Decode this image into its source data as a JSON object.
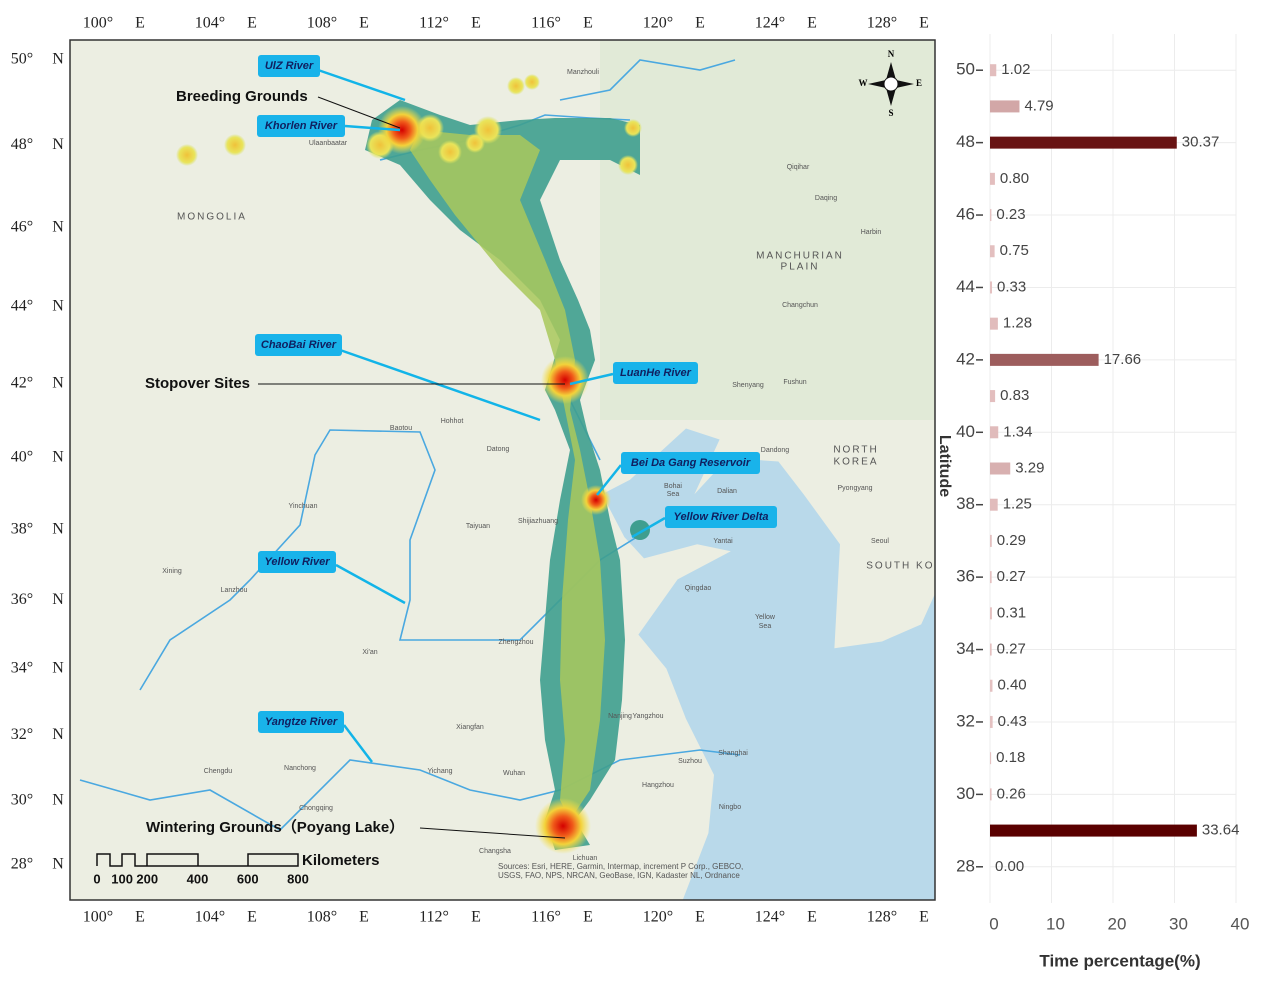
{
  "map": {
    "lon_ticks": [
      {
        "value": 100,
        "label": "100°"
      },
      {
        "value": 104,
        "label": "104°"
      },
      {
        "value": 108,
        "label": "108°"
      },
      {
        "value": 112,
        "label": "112°"
      },
      {
        "value": 116,
        "label": "116°"
      },
      {
        "value": 120,
        "label": "120°"
      },
      {
        "value": 124,
        "label": "124°"
      },
      {
        "value": 128,
        "label": "128°"
      }
    ],
    "lon_hemisphere": "E",
    "lat_ticks": [
      {
        "value": 50,
        "label": "50°"
      },
      {
        "value": 48,
        "label": "48°"
      },
      {
        "value": 46,
        "label": "46°"
      },
      {
        "value": 44,
        "label": "44°"
      },
      {
        "value": 42,
        "label": "42°"
      },
      {
        "value": 40,
        "label": "40°"
      },
      {
        "value": 38,
        "label": "38°"
      },
      {
        "value": 36,
        "label": "36°"
      },
      {
        "value": 34,
        "label": "34°"
      },
      {
        "value": 32,
        "label": "32°"
      },
      {
        "value": 30,
        "label": "30°"
      },
      {
        "value": 28,
        "label": "28°"
      }
    ],
    "lat_hemisphere": "N",
    "river_labels": [
      "UlZ River",
      "Khorlen River",
      "ChaoBai River",
      "LuanHe River",
      "Bei Da Gang Reservoir",
      "Yellow River Delta",
      "Yellow River",
      "Yangtze River"
    ],
    "site_labels": [
      "Breeding Grounds",
      "Stopover Sites",
      "Wintering Grounds（Poyang Lake）"
    ],
    "places": [
      "MONGOLIA",
      "Ulaanbaatar",
      "Manzhouli",
      "Qiqihar",
      "Daqing",
      "Harbin",
      "MANCHURIAN",
      "PLAIN",
      "Changchun",
      "Shenyang",
      "Fushun",
      "Dandong",
      "NORTH",
      "KOREA",
      "Pyongyang",
      "Seoul",
      "SOUTH KOR",
      "Baotou",
      "Hohhot",
      "Datong",
      "Shijiazhuang",
      "Taiyuan",
      "Dalian",
      "Yantai",
      "Qingdao",
      "Zhengzhou",
      "Xi'an",
      "Lanzhou",
      "Xining",
      "Yinchuan",
      "Chengdu",
      "Nanchong",
      "Chongqing",
      "Yichang",
      "Wuhan",
      "Xiangfan",
      "Nanjing",
      "Yangzhou",
      "Shanghai",
      "Suzhou",
      "Hangzhou",
      "Ningbo",
      "Changsha",
      "Lichuan",
      "Yellow",
      "Sea",
      "Bohai",
      "Sea"
    ],
    "scale_bar": {
      "ticks": [
        0,
        100,
        200,
        400,
        600,
        800
      ],
      "unit": "Kilometers"
    },
    "compass": {
      "n": "N",
      "s": "S",
      "e": "E",
      "w": "W"
    },
    "attribution": "Sources: Esri, HERE, Garmin, Intermap, increment P Corp., GEBCO, USGS, FAO, NPS, NRCAN, GeoBase, IGN, Kadaster NL, Ordnance"
  },
  "chart_data": {
    "type": "bar",
    "orientation": "horizontal",
    "y": [
      50,
      49,
      48,
      47,
      46,
      45,
      44,
      43,
      42,
      41,
      40,
      39,
      38,
      37,
      36,
      35,
      34,
      33,
      32,
      31,
      30,
      29,
      28
    ],
    "values": [
      1.02,
      4.79,
      30.37,
      0.8,
      0.23,
      0.75,
      0.33,
      1.28,
      17.66,
      0.83,
      1.34,
      3.29,
      1.25,
      0.29,
      0.27,
      0.31,
      0.27,
      0.4,
      0.43,
      0.18,
      0.26,
      33.64,
      0
    ],
    "value_labels": [
      "1.02",
      "4.79",
      "30.37",
      "0.80",
      "0.23",
      "0.75",
      "0.33",
      "1.28",
      "17.66",
      "0.83",
      "1.34",
      "3.29",
      "1.25",
      "0.29",
      "0.27",
      "0.31",
      "0.27",
      "0.40",
      "0.43",
      "0.18",
      "0.26",
      "33.64",
      "0.00"
    ],
    "ylim": [
      27,
      51
    ],
    "yticks": [
      50,
      48,
      46,
      44,
      42,
      40,
      38,
      36,
      34,
      32,
      30,
      28
    ],
    "xlim": [
      0,
      40
    ],
    "xticks": [
      0,
      10,
      20,
      30,
      40
    ],
    "x_label": "Time percentage(%)",
    "y_label": "Latitude",
    "grid": true,
    "color_scale": {
      "low": "#e6c3c3",
      "high": "#5a0000"
    }
  }
}
